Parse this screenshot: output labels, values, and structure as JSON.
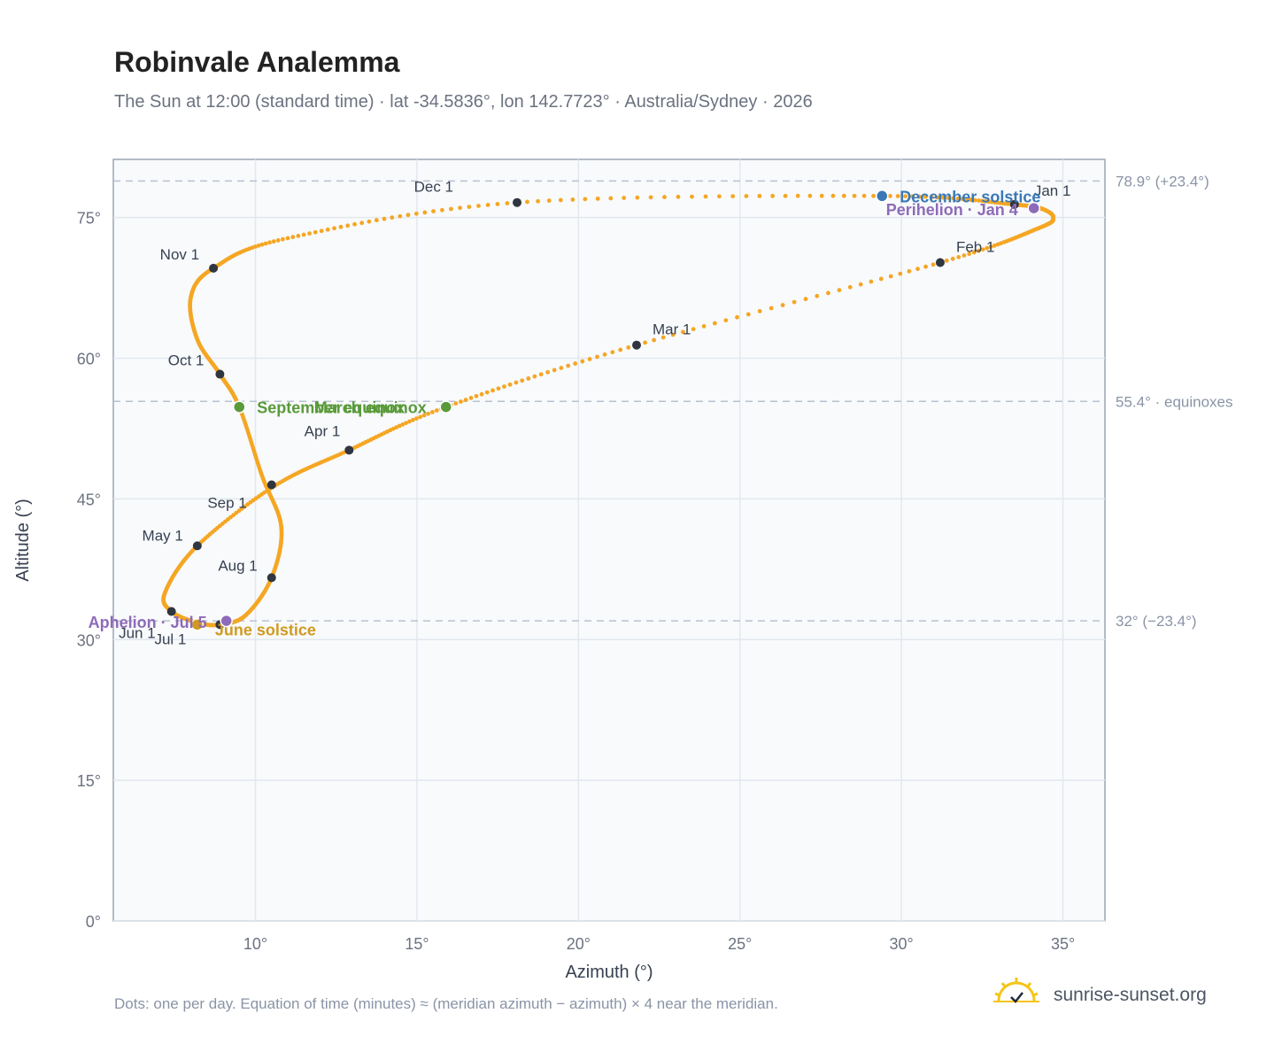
{
  "header": {
    "title": "Robinvale Analemma",
    "subtitle": "The Sun at 12:00 (standard time) · lat -34.5836°, lon 142.7723° · Australia/Sydney · 2026"
  },
  "footer": {
    "note": "Dots: one per day. Equation of time (minutes) ≈ (meridian azimuth − azimuth) × 4 near the meridian.",
    "brand": "sunrise-sunset.org"
  },
  "colors": {
    "path": "#f5a623",
    "month_dot": "#2f3640",
    "equinox": "#5a9a3a",
    "december_solstice": "#3a78b5",
    "june_solstice": "#d19a1f",
    "apsis": "#8e6bb8",
    "reference_line": "#b8c2d0",
    "plot_bg": "#f8fafc",
    "grid": "#e3e8ef"
  },
  "chart_data": {
    "type": "scatter",
    "xlabel": "Azimuth (°)",
    "ylabel": "Altitude (°)",
    "xlim": [
      5.6,
      36.3
    ],
    "ylim": [
      0,
      81.2
    ],
    "xticks": [
      10,
      15,
      20,
      25,
      30,
      35
    ],
    "yticks": [
      0,
      15,
      30,
      45,
      60,
      75
    ],
    "grid": true,
    "path_anchors": [
      {
        "x": 33.5,
        "y": 76.4
      },
      {
        "x": 34.3,
        "y": 76.0
      },
      {
        "x": 34.7,
        "y": 75.0
      },
      {
        "x": 34.2,
        "y": 73.8
      },
      {
        "x": 31.2,
        "y": 70.2
      },
      {
        "x": 21.8,
        "y": 61.4
      },
      {
        "x": 15.9,
        "y": 54.8
      },
      {
        "x": 12.9,
        "y": 50.2
      },
      {
        "x": 10.6,
        "y": 46.4
      },
      {
        "x": 8.2,
        "y": 40.0
      },
      {
        "x": 7.2,
        "y": 35.0
      },
      {
        "x": 7.4,
        "y": 33.0
      },
      {
        "x": 8.2,
        "y": 31.8
      },
      {
        "x": 8.9,
        "y": 31.6
      },
      {
        "x": 9.7,
        "y": 32.6
      },
      {
        "x": 10.5,
        "y": 36.6
      },
      {
        "x": 10.8,
        "y": 42.0
      },
      {
        "x": 10.2,
        "y": 47.5
      },
      {
        "x": 9.5,
        "y": 54.8
      },
      {
        "x": 8.9,
        "y": 58.3
      },
      {
        "x": 8.2,
        "y": 62.0
      },
      {
        "x": 8.0,
        "y": 66.5
      },
      {
        "x": 8.7,
        "y": 69.6
      },
      {
        "x": 11.0,
        "y": 72.8
      },
      {
        "x": 18.1,
        "y": 76.6
      },
      {
        "x": 29.4,
        "y": 77.3
      },
      {
        "x": 33.5,
        "y": 76.4
      }
    ],
    "months": [
      {
        "label": "Jan 1",
        "x": 33.5,
        "y": 76.4
      },
      {
        "label": "Feb 1",
        "x": 31.2,
        "y": 70.2
      },
      {
        "label": "Mar 1",
        "x": 21.8,
        "y": 61.4
      },
      {
        "label": "Apr 1",
        "x": 12.9,
        "y": 50.2
      },
      {
        "label": "May 1",
        "x": 8.2,
        "y": 40.0
      },
      {
        "label": "Jun 1",
        "x": 7.4,
        "y": 33.0
      },
      {
        "label": "Jul 1",
        "x": 8.9,
        "y": 31.6
      },
      {
        "label": "Aug 1",
        "x": 10.5,
        "y": 36.6
      },
      {
        "label": "Sep 1",
        "x": 10.5,
        "y": 46.5
      },
      {
        "label": "Oct 1",
        "x": 8.9,
        "y": 58.3
      },
      {
        "label": "Nov 1",
        "x": 8.7,
        "y": 69.6
      },
      {
        "label": "Dec 1",
        "x": 18.1,
        "y": 76.6
      }
    ],
    "events": [
      {
        "label": "March equinox",
        "x": 15.9,
        "y": 54.8,
        "color_key": "equinox"
      },
      {
        "label": "September equinox",
        "x": 9.5,
        "y": 54.8,
        "color_key": "equinox"
      },
      {
        "label": "December solstice",
        "x": 29.4,
        "y": 77.3,
        "color_key": "december_solstice"
      },
      {
        "label": "June solstice",
        "x": 8.2,
        "y": 31.6,
        "color_key": "june_solstice"
      },
      {
        "label": "Perihelion · Jan 4",
        "x": 34.1,
        "y": 76.0,
        "color_key": "apsis"
      },
      {
        "label": "Aphelion · Jul 5",
        "x": 9.1,
        "y": 32.0,
        "color_key": "apsis"
      }
    ],
    "reference_lines": [
      {
        "label": "78.9° (+23.4°)",
        "y": 78.9
      },
      {
        "label": "55.4° · equinoxes",
        "y": 55.4
      },
      {
        "label": "32° (−23.4°)",
        "y": 32.0
      }
    ]
  }
}
